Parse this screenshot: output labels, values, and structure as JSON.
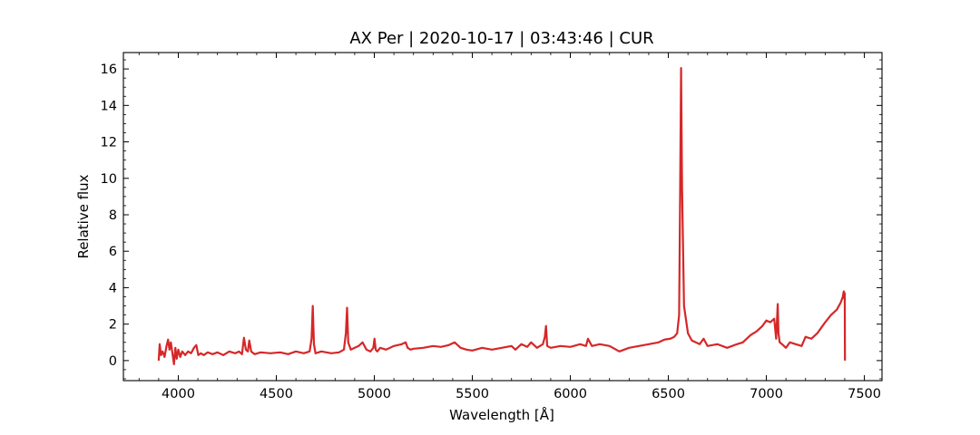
{
  "chart_data": {
    "type": "line",
    "title": "AX Per | 2020-10-17 | 03:43:46 | CUR",
    "xlabel": "Wavelength [Å]",
    "ylabel": "Relative flux",
    "xlim": [
      3720,
      7590
    ],
    "ylim": [
      -1.1,
      16.9
    ],
    "xticks": [
      4000,
      4500,
      5000,
      5500,
      6000,
      6500,
      7000,
      7500
    ],
    "yticks": [
      0,
      2,
      4,
      6,
      8,
      10,
      12,
      14,
      16
    ],
    "grid": false,
    "line_color": "#d62728",
    "series": [
      {
        "x": [
          3900,
          3905,
          3912,
          3920,
          3930,
          3940,
          3948,
          3955,
          3962,
          3970,
          3978,
          3985,
          3992,
          4000,
          4010,
          4020,
          4035,
          4050,
          4065,
          4080,
          4092,
          4102,
          4115,
          4130,
          4150,
          4175,
          4200,
          4230,
          4260,
          4290,
          4310,
          4325,
          4335,
          4345,
          4355,
          4362,
          4372,
          4390,
          4420,
          4470,
          4520,
          4560,
          4600,
          4640,
          4670,
          4680,
          4686,
          4692,
          4700,
          4730,
          4780,
          4820,
          4845,
          4855,
          4861,
          4867,
          4880,
          4900,
          4920,
          4940,
          4960,
          4980,
          4995,
          5001,
          5007,
          5015,
          5030,
          5060,
          5100,
          5140,
          5160,
          5170,
          5185,
          5200,
          5250,
          5300,
          5340,
          5380,
          5410,
          5420,
          5440,
          5470,
          5500,
          5550,
          5600,
          5650,
          5700,
          5720,
          5750,
          5780,
          5800,
          5830,
          5860,
          5870,
          5876,
          5882,
          5900,
          5950,
          6000,
          6050,
          6080,
          6090,
          6110,
          6150,
          6200,
          6250,
          6300,
          6350,
          6400,
          6450,
          6480,
          6510,
          6530,
          6545,
          6555,
          6560,
          6565,
          6570,
          6580,
          6600,
          6620,
          6660,
          6680,
          6700,
          6750,
          6800,
          6850,
          6880,
          6900,
          6920,
          6950,
          6980,
          7000,
          7020,
          7040,
          7050,
          7058,
          7062,
          7068,
          7080,
          7100,
          7120,
          7150,
          7180,
          7200,
          7230,
          7260,
          7280,
          7300,
          7330,
          7360,
          7380,
          7390,
          7395,
          7398,
          7400,
          7401
        ],
        "y": [
          0.0,
          0.9,
          0.3,
          0.5,
          0.2,
          0.8,
          1.15,
          0.6,
          1.0,
          0.4,
          -0.2,
          0.7,
          0.1,
          0.6,
          0.2,
          0.5,
          0.3,
          0.5,
          0.4,
          0.7,
          0.85,
          0.3,
          0.4,
          0.3,
          0.45,
          0.35,
          0.45,
          0.3,
          0.5,
          0.4,
          0.5,
          0.35,
          1.25,
          0.6,
          0.5,
          1.1,
          0.5,
          0.35,
          0.45,
          0.4,
          0.45,
          0.35,
          0.5,
          0.4,
          0.5,
          1.2,
          3.0,
          0.9,
          0.4,
          0.5,
          0.4,
          0.45,
          0.6,
          1.5,
          2.9,
          1.0,
          0.6,
          0.7,
          0.8,
          1.0,
          0.6,
          0.5,
          0.7,
          1.2,
          0.6,
          0.5,
          0.7,
          0.6,
          0.8,
          0.9,
          1.0,
          0.7,
          0.6,
          0.65,
          0.7,
          0.8,
          0.75,
          0.85,
          1.0,
          0.9,
          0.7,
          0.6,
          0.55,
          0.7,
          0.6,
          0.7,
          0.8,
          0.6,
          0.9,
          0.75,
          1.0,
          0.7,
          0.9,
          1.3,
          1.9,
          0.8,
          0.7,
          0.8,
          0.75,
          0.9,
          0.8,
          1.2,
          0.8,
          0.9,
          0.8,
          0.5,
          0.7,
          0.8,
          0.9,
          1.0,
          1.15,
          1.2,
          1.3,
          1.5,
          2.5,
          9.0,
          16.05,
          9.5,
          3.0,
          1.5,
          1.1,
          0.9,
          1.2,
          0.8,
          0.9,
          0.7,
          0.9,
          1.0,
          1.2,
          1.4,
          1.6,
          1.9,
          2.2,
          2.1,
          2.3,
          1.2,
          3.1,
          1.5,
          1.0,
          0.9,
          0.7,
          1.0,
          0.9,
          0.8,
          1.3,
          1.2,
          1.5,
          1.8,
          2.1,
          2.5,
          2.8,
          3.2,
          3.5,
          3.8,
          3.4,
          3.7,
          0.0
        ]
      }
    ]
  }
}
